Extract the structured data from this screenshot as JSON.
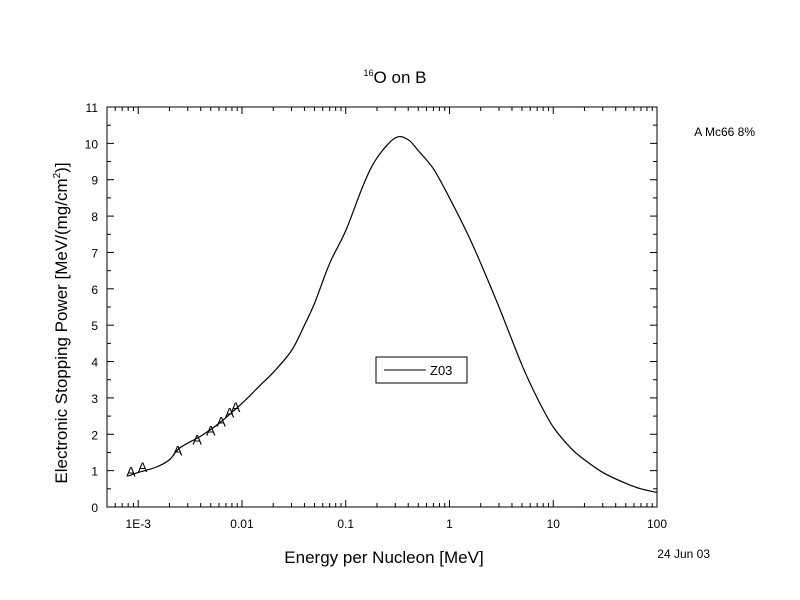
{
  "chart_data": {
    "type": "line",
    "title": {
      "superscript": "16",
      "main": "O on B"
    },
    "xlabel": "Energy per Nucleon [MeV]",
    "ylabel": {
      "pre": "Electronic Stopping Power [MeV/(mg/cm",
      "sup": "2",
      "post": ")]"
    },
    "x_scale": "log",
    "xlim": [
      0.0005,
      100
    ],
    "ylim": [
      0,
      11
    ],
    "x_ticks": [
      0.001,
      0.01,
      0.1,
      1,
      10,
      100
    ],
    "x_tick_labels": [
      "1E-3",
      "0.01",
      "0.1",
      "1",
      "10",
      "100"
    ],
    "y_ticks": [
      0,
      1,
      2,
      3,
      4,
      5,
      6,
      7,
      8,
      9,
      10,
      11
    ],
    "y_tick_labels": [
      "0",
      "1",
      "2",
      "3",
      "4",
      "5",
      "6",
      "7",
      "8",
      "9",
      "10",
      "11"
    ],
    "grid": false,
    "series": [
      {
        "name": "Z03",
        "style": "line",
        "color": "#000000",
        "x": [
          0.0008,
          0.001,
          0.0015,
          0.002,
          0.0025,
          0.004,
          0.006,
          0.01,
          0.015,
          0.02,
          0.03,
          0.04,
          0.05,
          0.07,
          0.1,
          0.15,
          0.2,
          0.3,
          0.4,
          0.5,
          0.7,
          1,
          1.5,
          2,
          3,
          5,
          7,
          10,
          15,
          20,
          30,
          50,
          70,
          100
        ],
        "y": [
          0.85,
          0.95,
          1.1,
          1.3,
          1.62,
          1.95,
          2.3,
          2.85,
          3.35,
          3.7,
          4.3,
          5.0,
          5.6,
          6.7,
          7.6,
          8.9,
          9.6,
          10.15,
          10.1,
          9.8,
          9.3,
          8.5,
          7.5,
          6.7,
          5.5,
          3.9,
          3.0,
          2.2,
          1.6,
          1.3,
          0.95,
          0.65,
          0.5,
          0.4
        ]
      },
      {
        "name": "A",
        "style": "marker",
        "marker": "A",
        "x": [
          0.00085,
          0.0011,
          0.0024,
          0.0037,
          0.005,
          0.0063,
          0.0076,
          0.0087
        ],
        "y": [
          0.98,
          1.1,
          1.55,
          1.85,
          2.1,
          2.35,
          2.6,
          2.75
        ]
      }
    ],
    "legend": {
      "position": "center-right",
      "entries": [
        {
          "label": "Z03",
          "symbol": "line"
        }
      ]
    },
    "annotations": {
      "data_source": "A Mc66 8%",
      "date": "24 Jun 03"
    }
  }
}
